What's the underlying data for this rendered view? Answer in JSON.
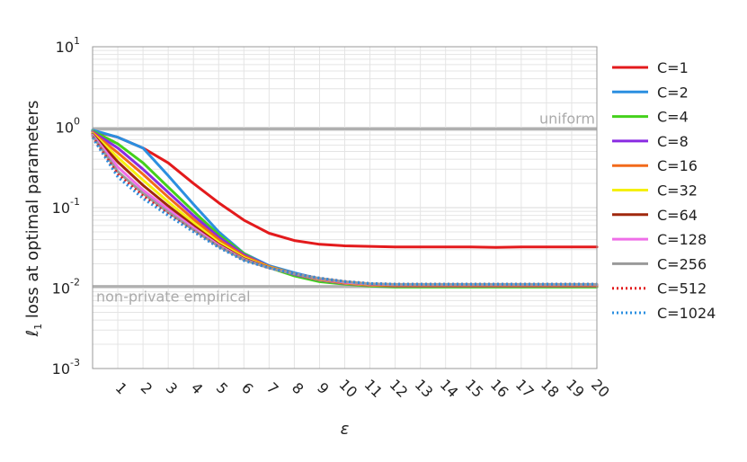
{
  "chart_data": {
    "type": "line",
    "title": "",
    "xlabel": "ε",
    "ylabel_prefix": "ℓ",
    "ylabel_sub": "1",
    "ylabel_text": " loss at optimal parameters",
    "y_scale": "log",
    "ylim": [
      0.001,
      10
    ],
    "xlim": [
      0,
      20
    ],
    "grid": true,
    "legend_position": "right",
    "x_ticks": [
      1,
      2,
      3,
      4,
      5,
      6,
      7,
      8,
      9,
      10,
      11,
      12,
      13,
      14,
      15,
      16,
      17,
      18,
      19,
      20
    ],
    "y_ticks": [
      {
        "value": 0.001,
        "base": "10",
        "exp": "-3"
      },
      {
        "value": 0.01,
        "base": "10",
        "exp": "-2"
      },
      {
        "value": 0.1,
        "base": "10",
        "exp": "-1"
      },
      {
        "value": 1,
        "base": "10",
        "exp": "0"
      },
      {
        "value": 10,
        "base": "10",
        "exp": "1"
      }
    ],
    "reference_lines": [
      {
        "label": "uniform",
        "y": 0.95,
        "color": "#b0b0b0"
      },
      {
        "label": "non-private empirical",
        "y": 0.0105,
        "color": "#b0b0b0"
      }
    ],
    "x": [
      0,
      1,
      2,
      3,
      4,
      5,
      6,
      7,
      8,
      9,
      10,
      11,
      12,
      13,
      14,
      15,
      16,
      17,
      18,
      19,
      20
    ],
    "series": [
      {
        "name": "C=1",
        "color": "#e31a1c",
        "style": "solid",
        "values": [
          0.9,
          0.75,
          0.55,
          0.36,
          0.2,
          0.115,
          0.07,
          0.048,
          0.039,
          0.035,
          0.0335,
          0.033,
          0.0325,
          0.0325,
          0.0325,
          0.0325,
          0.032,
          0.0325,
          0.0325,
          0.0325,
          0.0325
        ]
      },
      {
        "name": "C=2",
        "color": "#2b8fe0",
        "style": "solid",
        "values": [
          0.92,
          0.75,
          0.55,
          0.25,
          0.11,
          0.05,
          0.027,
          0.019,
          0.0155,
          0.013,
          0.0118,
          0.0112,
          0.0109,
          0.0108,
          0.0108,
          0.0108,
          0.0108,
          0.0108,
          0.0108,
          0.0108,
          0.0108
        ]
      },
      {
        "name": "C=4",
        "color": "#44d11c",
        "style": "solid",
        "values": [
          0.9,
          0.62,
          0.36,
          0.18,
          0.09,
          0.046,
          0.027,
          0.018,
          0.0142,
          0.012,
          0.0112,
          0.0106,
          0.0103,
          0.0103,
          0.0103,
          0.0103,
          0.0103,
          0.0103,
          0.0103,
          0.0103,
          0.0103
        ]
      },
      {
        "name": "C=8",
        "color": "#8a2be2",
        "style": "solid",
        "values": [
          0.88,
          0.55,
          0.3,
          0.155,
          0.08,
          0.043,
          0.026,
          0.0185,
          0.0148,
          0.0126,
          0.0114,
          0.0108,
          0.0106,
          0.0106,
          0.0106,
          0.0106,
          0.0106,
          0.0106,
          0.0106,
          0.0106,
          0.0106
        ]
      },
      {
        "name": "C=16",
        "color": "#f26a1b",
        "style": "solid",
        "values": [
          0.86,
          0.48,
          0.26,
          0.135,
          0.072,
          0.04,
          0.025,
          0.0185,
          0.015,
          0.0128,
          0.0115,
          0.0109,
          0.0107,
          0.0107,
          0.0107,
          0.0107,
          0.0107,
          0.0107,
          0.0107,
          0.0107,
          0.0107
        ]
      },
      {
        "name": "C=32",
        "color": "#f5f010",
        "style": "solid",
        "values": [
          0.84,
          0.42,
          0.22,
          0.118,
          0.065,
          0.037,
          0.024,
          0.0182,
          0.015,
          0.0128,
          0.0116,
          0.011,
          0.0108,
          0.0108,
          0.0108,
          0.0108,
          0.0108,
          0.0108,
          0.0108,
          0.0108,
          0.0108
        ]
      },
      {
        "name": "C=64",
        "color": "#a0280d",
        "style": "solid",
        "values": [
          0.82,
          0.37,
          0.19,
          0.105,
          0.06,
          0.035,
          0.0232,
          0.018,
          0.015,
          0.013,
          0.0117,
          0.0111,
          0.0109,
          0.0109,
          0.0109,
          0.0109,
          0.0109,
          0.0109,
          0.0109,
          0.0109,
          0.0109
        ]
      },
      {
        "name": "C=128",
        "color": "#ef6ee8",
        "style": "solid",
        "values": [
          0.8,
          0.32,
          0.165,
          0.095,
          0.056,
          0.034,
          0.0228,
          0.0178,
          0.015,
          0.0131,
          0.0118,
          0.0112,
          0.011,
          0.011,
          0.011,
          0.011,
          0.011,
          0.011,
          0.011,
          0.011,
          0.011
        ]
      },
      {
        "name": "C=256",
        "color": "#9a9a9a",
        "style": "solid",
        "values": [
          0.78,
          0.28,
          0.15,
          0.088,
          0.053,
          0.033,
          0.0225,
          0.0178,
          0.015,
          0.0132,
          0.012,
          0.0113,
          0.0111,
          0.0111,
          0.0111,
          0.0111,
          0.0111,
          0.0111,
          0.0111,
          0.0111,
          0.0111
        ]
      },
      {
        "name": "C=512",
        "color": "#e31a1c",
        "style": "dotted",
        "values": [
          0.76,
          0.26,
          0.14,
          0.083,
          0.051,
          0.0325,
          0.0222,
          0.0178,
          0.0151,
          0.0133,
          0.0121,
          0.0114,
          0.0112,
          0.0112,
          0.0112,
          0.0112,
          0.0112,
          0.0112,
          0.0112,
          0.0112,
          0.0112
        ]
      },
      {
        "name": "C=1024",
        "color": "#2b8fe0",
        "style": "dotted",
        "values": [
          0.74,
          0.24,
          0.13,
          0.08,
          0.05,
          0.032,
          0.022,
          0.0178,
          0.0151,
          0.0133,
          0.0121,
          0.0114,
          0.0112,
          0.0112,
          0.0112,
          0.0112,
          0.0112,
          0.0112,
          0.0112,
          0.0112,
          0.0112
        ]
      }
    ]
  }
}
